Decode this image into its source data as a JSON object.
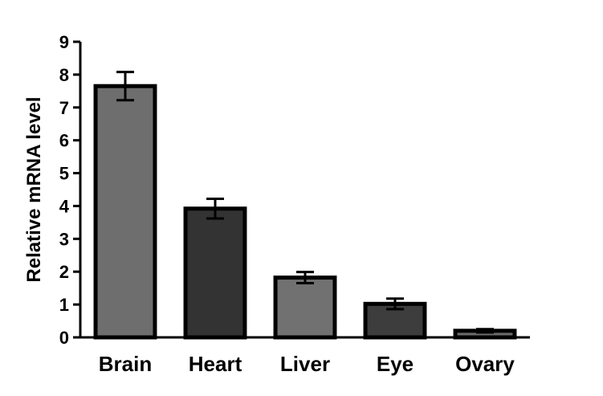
{
  "chart_data": {
    "type": "bar",
    "title": "",
    "xlabel": "",
    "ylabel": "Relative mRNA level",
    "ylim": [
      0,
      9
    ],
    "yticks": [
      0,
      1,
      2,
      3,
      4,
      5,
      6,
      7,
      8,
      9
    ],
    "grid": false,
    "legend": "none",
    "categories": [
      "Brain",
      "Heart",
      "Liver",
      "Eye",
      "Ovary"
    ],
    "values": [
      7.65,
      3.92,
      1.82,
      1.02,
      0.2
    ],
    "errors": [
      0.43,
      0.3,
      0.17,
      0.16,
      0.05
    ],
    "colors": [
      "#6e6e6e",
      "#333333",
      "#717171",
      "#3d3d3d",
      "#6a6a6a"
    ],
    "edge_color": "#000000"
  }
}
